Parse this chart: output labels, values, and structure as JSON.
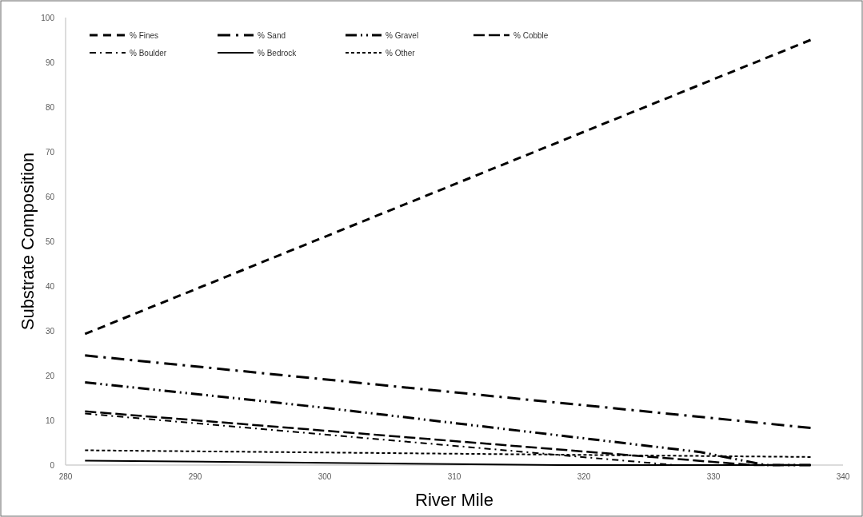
{
  "chart_data": {
    "type": "line",
    "xlabel": "River Mile",
    "ylabel": "Substrate Composition",
    "xlim": [
      280,
      340
    ],
    "xticks": [
      280,
      290,
      300,
      310,
      320,
      330,
      340
    ],
    "ylim": [
      0,
      100
    ],
    "yticks": [
      0,
      10,
      20,
      30,
      40,
      50,
      60,
      70,
      80,
      90,
      100
    ],
    "grid": false,
    "legend": "top left",
    "marker": "none",
    "series": [
      {
        "name": "% Fines",
        "color": "#000000",
        "line_style": "dashed",
        "x": [
          281.5,
          337.5
        ],
        "values": [
          29.3,
          95
        ]
      },
      {
        "name": "% Sand",
        "color": "#000000",
        "line_style": "longdashdot",
        "x": [
          281.5,
          337.5
        ],
        "values": [
          24.5,
          8.3
        ]
      },
      {
        "name": "% Gravel",
        "color": "#000000",
        "line_style": "longdashdotdot",
        "x": [
          281.5,
          300,
          329,
          334,
          337.5
        ],
        "values": [
          18.5,
          12.8,
          2.9,
          0,
          0
        ]
      },
      {
        "name": "% Cobble",
        "color": "#000000",
        "line_style": "longdash",
        "x": [
          281.5,
          333,
          337.5
        ],
        "values": [
          12,
          0,
          0
        ]
      },
      {
        "name": "% Boulder",
        "color": "#000000",
        "line_style": "dashdot",
        "x": [
          281.5,
          327,
          337.5
        ],
        "values": [
          11.5,
          0,
          0
        ]
      },
      {
        "name": "% Bedrock",
        "color": "#000000",
        "line_style": "solid",
        "x": [
          281.5,
          318,
          337.5
        ],
        "values": [
          1,
          0,
          0
        ]
      },
      {
        "name": "% Other",
        "color": "#000000",
        "line_style": "dotted",
        "x": [
          281.5,
          337.5
        ],
        "values": [
          3.3,
          1.8
        ]
      }
    ]
  }
}
